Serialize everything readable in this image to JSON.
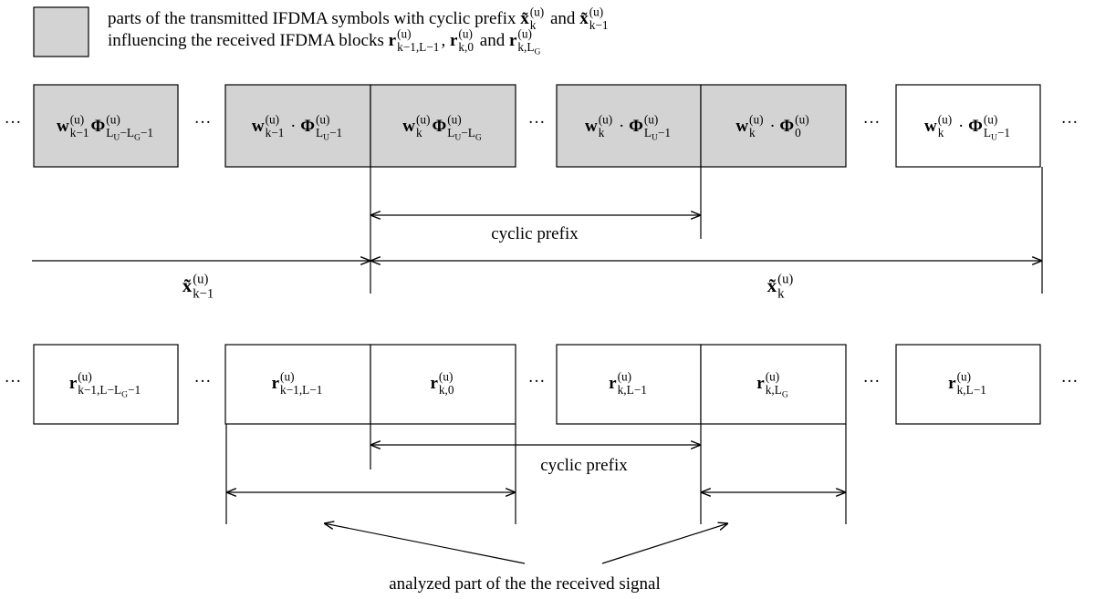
{
  "legend": {
    "line1": [
      "parts of the transmitted IFDMA symbols with cyclic prefix ",
      {
        "b": "x̃",
        "sup": "(u)",
        "sub": "k"
      },
      " and ",
      {
        "b": "x̃",
        "sup": "(u)",
        "sub": "k−1"
      }
    ],
    "line2": [
      "influencing the received IFDMA blocks ",
      {
        "b": "r",
        "sup": "(u)",
        "sub": "k−1,L−1"
      },
      ", ",
      {
        "b": "r",
        "sup": "(u)",
        "sub": "k,0"
      },
      " and ",
      {
        "b": "r",
        "sup": "(u)",
        "sub": [
          "k,",
          [
            "L",
            "G"
          ]
        ]
      }
    ]
  },
  "dots": "···",
  "transmitted_blocks": [
    [
      {
        "b": "w",
        "sup": "(u)",
        "sub": "k−1"
      },
      {
        "b": "Φ",
        "sup": "(u)",
        "sub": [
          [
            "L",
            "U"
          ],
          "−",
          [
            "L",
            "G"
          ],
          "−1"
        ]
      }
    ],
    [
      {
        "b": "w",
        "sup": "(u)",
        "sub": "k−1"
      },
      " · ",
      {
        "b": "Φ",
        "sup": "(u)",
        "sub": [
          [
            "L",
            "U"
          ],
          "−1"
        ]
      }
    ],
    [
      {
        "b": "w",
        "sup": "(u)",
        "sub": "k"
      },
      {
        "b": "Φ",
        "sup": "(u)",
        "sub": [
          [
            "L",
            "U"
          ],
          "−",
          [
            "L",
            "G"
          ]
        ]
      }
    ],
    [
      {
        "b": "w",
        "sup": "(u)",
        "sub": "k"
      },
      " · ",
      {
        "b": "Φ",
        "sup": "(u)",
        "sub": [
          [
            "L",
            "U"
          ],
          "−1"
        ]
      }
    ],
    [
      {
        "b": "w",
        "sup": "(u)",
        "sub": "k"
      },
      " · ",
      {
        "b": "Φ",
        "sup": "(u)",
        "sub": "0"
      }
    ],
    [
      {
        "b": "w",
        "sup": "(u)",
        "sub": "k"
      },
      " · ",
      {
        "b": "Φ",
        "sup": "(u)",
        "sub": [
          [
            "L",
            "U"
          ],
          "−1"
        ]
      }
    ]
  ],
  "received_blocks": [
    [
      {
        "b": "r",
        "sup": "(u)",
        "sub": [
          "k−1,L−",
          [
            "L",
            "G"
          ],
          "−1"
        ]
      }
    ],
    [
      {
        "b": "r",
        "sup": "(u)",
        "sub": "k−1,L−1"
      }
    ],
    [
      {
        "b": "r",
        "sup": "(u)",
        "sub": "k,0"
      }
    ],
    [
      {
        "b": "r",
        "sup": "(u)",
        "sub": "k,L−1"
      }
    ],
    [
      {
        "b": "r",
        "sup": "(u)",
        "sub": [
          "k,",
          [
            "L",
            "G"
          ]
        ]
      }
    ],
    [
      {
        "b": "r",
        "sup": "(u)",
        "sub": "k,L−1"
      }
    ]
  ],
  "cyclic_prefix_tx": "cyclic prefix",
  "symbol_prev": [
    {
      "b": "x̃",
      "sup": "(u)",
      "sub": "k−1"
    }
  ],
  "symbol_cur": [
    {
      "b": "x̃",
      "sup": "(u)",
      "sub": "k"
    }
  ],
  "cyclic_prefix_rx": "cyclic prefix",
  "analyzed": "analyzed part of the the received signal"
}
